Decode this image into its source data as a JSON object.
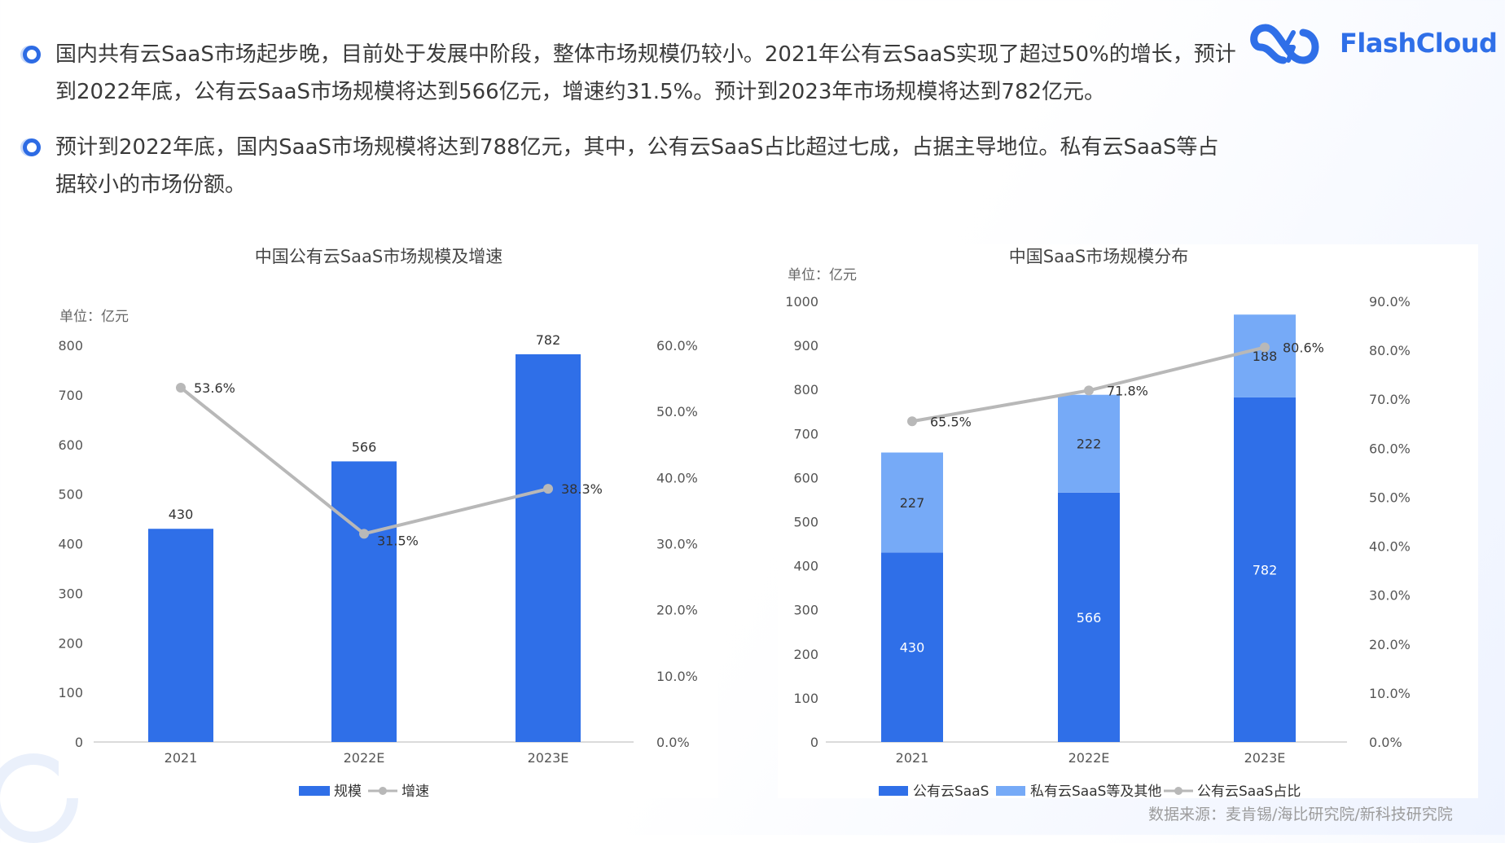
{
  "brand": {
    "name": "FlashCloud"
  },
  "paragraphs": [
    "国内共有云SaaS市场起步晚，目前处于发展中阶段，整体市场规模仍较小。2021年公有云SaaS实现了超过50%的增长，预计到2022年底，公有云SaaS市场规模将达到566亿元，增速约31.5%。预计到2023年市场规模将达到782亿元。",
    "预计到2022年底，国内SaaS市场规模将达到788亿元，其中，公有云SaaS占比超过七成，占据主导地位。私有云SaaS等占据较小的市场份额。"
  ],
  "source": "数据来源：麦肯锡/海比研究院/新科技研究院",
  "colors": {
    "primary": "#2f6fe8",
    "secondary": "#76aaf7",
    "line": "#b8b8b8",
    "bullet": "#2d6be4"
  },
  "chart_data": [
    {
      "type": "bar",
      "title": "中国公有云SaaS市场规模及增速",
      "unit": "单位：亿元",
      "categories": [
        "2021",
        "2022E",
        "2023E"
      ],
      "series": [
        {
          "name": "规模",
          "type": "bar",
          "values": [
            430,
            566,
            782
          ],
          "labels": [
            "430",
            "566",
            "782"
          ]
        },
        {
          "name": "增速",
          "type": "line",
          "axis": "right",
          "values": [
            53.6,
            31.5,
            38.3
          ],
          "labels": [
            "53.6%",
            "31.5%",
            "38.3%"
          ]
        }
      ],
      "ylim": [
        0,
        800
      ],
      "yticks": [
        "800",
        "700",
        "600",
        "500",
        "400",
        "300",
        "200",
        "100",
        "0"
      ],
      "y2lim": [
        0,
        60
      ],
      "y2ticks": [
        "60.0%",
        "50.0%",
        "40.0%",
        "30.0%",
        "20.0%",
        "10.0%",
        "0.0%"
      ],
      "legend": [
        {
          "name": "规模",
          "kind": "bar"
        },
        {
          "name": "增速",
          "kind": "line"
        }
      ]
    },
    {
      "type": "bar",
      "stacked": true,
      "title": "中国SaaS市场规模分布",
      "unit": "单位：亿元",
      "categories": [
        "2021",
        "2022E",
        "2023E"
      ],
      "series": [
        {
          "name": "公有云SaaS",
          "type": "bar",
          "values": [
            430,
            566,
            782
          ],
          "labels": [
            "430",
            "566",
            "782"
          ]
        },
        {
          "name": "私有云SaaS等及其他",
          "type": "bar",
          "values": [
            227,
            222,
            188
          ],
          "labels": [
            "227",
            "222",
            "188"
          ]
        },
        {
          "name": "公有云SaaS占比",
          "type": "line",
          "axis": "right",
          "values": [
            65.5,
            71.8,
            80.6
          ],
          "labels": [
            "65.5%",
            "71.8%",
            "80.6%"
          ]
        }
      ],
      "ylim": [
        0,
        1000
      ],
      "yticks": [
        "1000",
        "900",
        "800",
        "700",
        "600",
        "500",
        "400",
        "300",
        "200",
        "100",
        "0"
      ],
      "y2lim": [
        0,
        90
      ],
      "y2ticks": [
        "90.0%",
        "80.0%",
        "70.0%",
        "60.0%",
        "50.0%",
        "40.0%",
        "30.0%",
        "20.0%",
        "10.0%",
        "0.0%"
      ],
      "legend": [
        {
          "name": "公有云SaaS",
          "kind": "bar"
        },
        {
          "name": "私有云SaaS等及其他",
          "kind": "bar2"
        },
        {
          "name": "公有云SaaS占比",
          "kind": "line"
        }
      ]
    }
  ]
}
